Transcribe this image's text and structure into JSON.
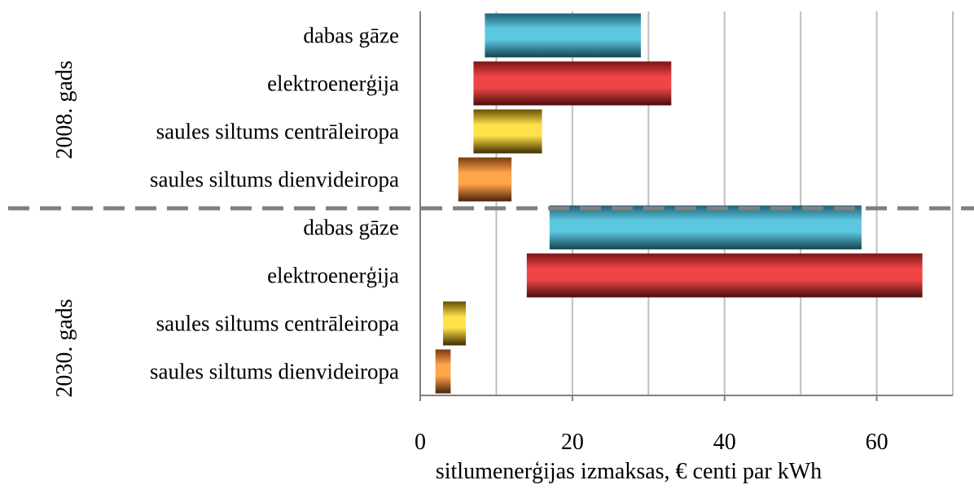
{
  "chart_data": {
    "type": "bar",
    "orientation": "horizontal",
    "floating_bars": true,
    "xlabel": "sitlumenerģijas izmaksas, € centi par kWh",
    "xlim": [
      0,
      70
    ],
    "xticks": [
      0,
      20,
      40,
      60
    ],
    "grid": true,
    "legend": "none",
    "groups": [
      {
        "label": "2008. gads",
        "bars": [
          {
            "category": "dabas gāze",
            "start": 8.5,
            "end": 29,
            "color": "teal"
          },
          {
            "category": "elektroenerģija",
            "start": 7,
            "end": 33,
            "color": "red"
          },
          {
            "category": "saules siltums centrāleiropa",
            "start": 7,
            "end": 16,
            "color": "yellow"
          },
          {
            "category": "saules siltums dienvideiropa",
            "start": 5,
            "end": 12,
            "color": "orange"
          }
        ]
      },
      {
        "label": "2030. gads",
        "bars": [
          {
            "category": "dabas gāze",
            "start": 17,
            "end": 58,
            "color": "teal"
          },
          {
            "category": "elektroenerģija",
            "start": 14,
            "end": 66,
            "color": "red"
          },
          {
            "category": "saules siltums centrāleiropa",
            "start": 3,
            "end": 6,
            "color": "yellow"
          },
          {
            "category": "saules siltums dienvideiropa",
            "start": 2,
            "end": 4,
            "color": "orange"
          }
        ]
      }
    ]
  },
  "colors": {
    "teal": [
      "#1f5f74",
      "#5cc8e0",
      "#14404f"
    ],
    "red": [
      "#7a1515",
      "#f04545",
      "#4a0d0d"
    ],
    "yellow": [
      "#6a4e00",
      "#ffe14a",
      "#3e2c00"
    ],
    "orange": [
      "#7a3a0c",
      "#ffa54c",
      "#4a2206"
    ],
    "divider": "#808080",
    "grid": "#bfbfbf"
  }
}
